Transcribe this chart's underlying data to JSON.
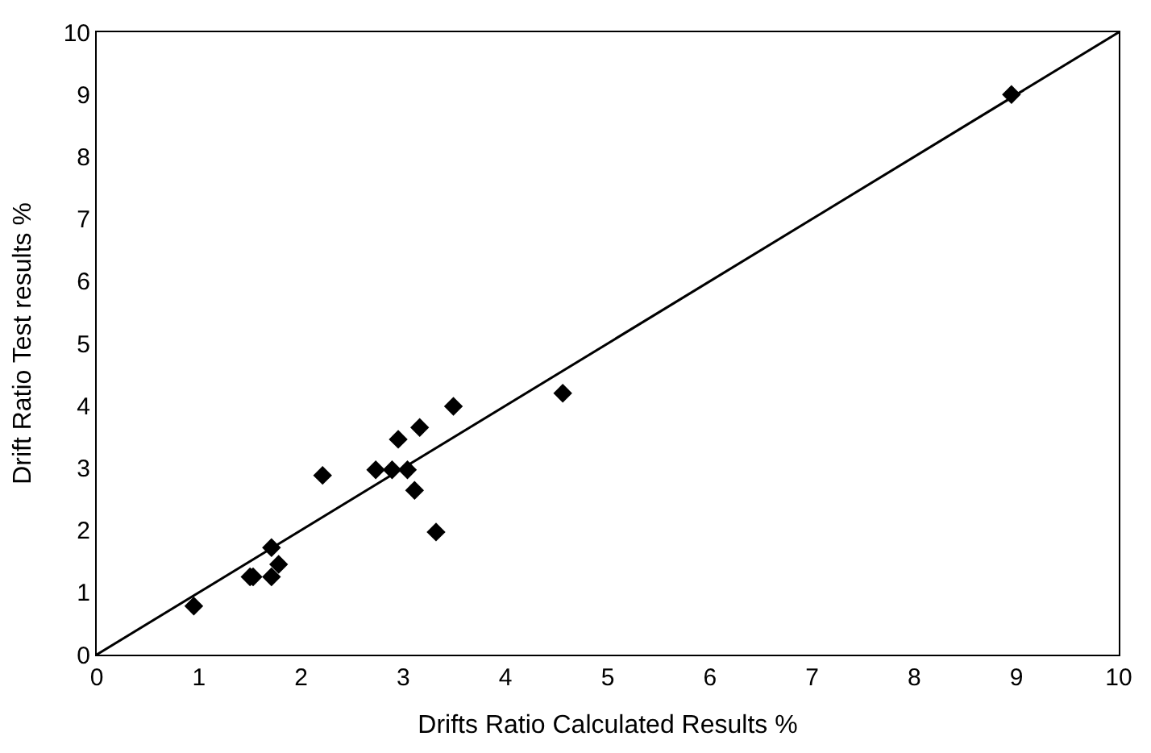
{
  "chart_data": {
    "type": "scatter",
    "xlabel": "Drifts Ratio Calculated Results %",
    "ylabel": "Drift Ratio Test results %",
    "legend": false,
    "xlim": [
      0,
      10
    ],
    "ylim": [
      0,
      10
    ],
    "xticks": [
      0,
      1,
      2,
      3,
      4,
      5,
      6,
      7,
      8,
      9,
      10
    ],
    "yticks": [
      0,
      1,
      2,
      3,
      4,
      5,
      6,
      7,
      8,
      9,
      10
    ],
    "series": [
      {
        "marker": "diamond",
        "color": "#000000",
        "x": [
          0.95,
          1.5,
          1.53,
          1.71,
          1.71,
          1.78,
          2.21,
          2.73,
          2.89,
          3.04,
          2.95,
          3.11,
          3.16,
          3.32,
          3.49,
          4.56,
          8.95
        ],
        "values": [
          0.78,
          1.25,
          1.25,
          1.25,
          1.72,
          1.45,
          2.88,
          2.97,
          2.97,
          2.97,
          3.46,
          2.64,
          3.65,
          1.97,
          3.99,
          4.2,
          9.0
        ]
      },
      {
        "type": "line",
        "color": "#000000",
        "x": [
          0,
          10
        ],
        "values": [
          0,
          10
        ]
      }
    ]
  }
}
